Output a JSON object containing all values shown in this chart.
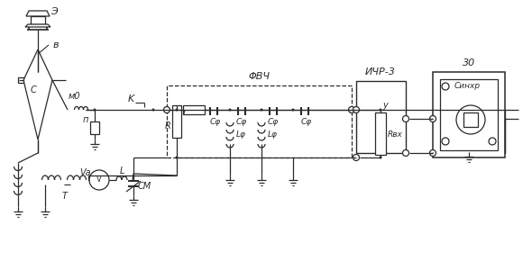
{
  "bg_color": "#ffffff",
  "line_color": "#2a2a2a",
  "labels": {
    "E": "Э",
    "B": "в",
    "MO": "м0",
    "C": "C",
    "P": "п",
    "K": "K",
    "VQ": "Vа",
    "T": "T",
    "CM": "CМ",
    "L": "L",
    "FVCh": "ΦВЧ",
    "r": "r",
    "R": "R",
    "Cf": "Cφ",
    "Lf": "Lφ",
    "IChR3": "ИЧР-3",
    "U": "y",
    "Rvx": "Rвх",
    "ZO": "30",
    "Synkh": "Cинхр"
  }
}
